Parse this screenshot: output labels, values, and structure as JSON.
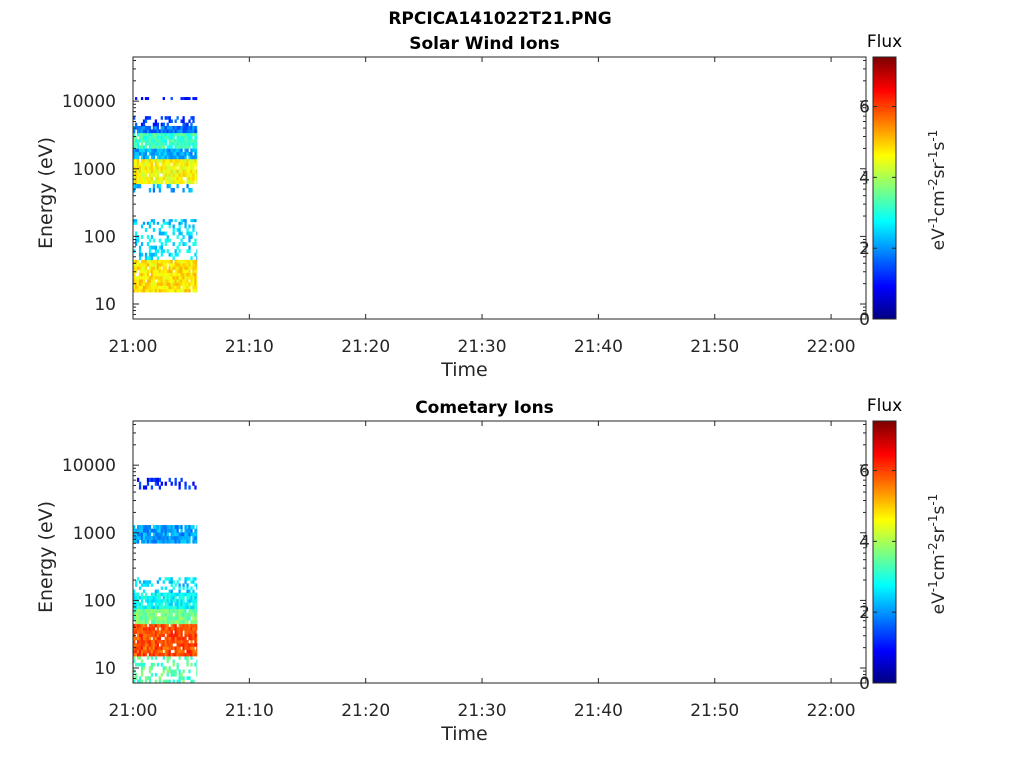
{
  "figure": {
    "title": "RPCICA141022T21.PNG"
  },
  "colormap": [
    "#00007f",
    "#0000ff",
    "#007fff",
    "#00ffff",
    "#7fff7f",
    "#ffff00",
    "#ff7f00",
    "#ff0000",
    "#7f0000"
  ],
  "chart_data": [
    {
      "type": "heatmap",
      "title": "Solar Wind Ions",
      "xlabel": "Time",
      "ylabel": "Energy (eV)",
      "x_ticks": [
        "21:00",
        "21:10",
        "21:20",
        "21:30",
        "21:40",
        "21:50",
        "22:00"
      ],
      "x_range": [
        "21:00",
        "22:03"
      ],
      "y_scale": "log",
      "y_ticks": [
        "10",
        "100",
        "1000",
        "10000"
      ],
      "y_range": [
        6,
        45000
      ],
      "colorbar": {
        "label": "Flux",
        "units_base": "eV",
        "units_parts": [
          [
            "-1",
            "cm"
          ],
          [
            "-2",
            "sr"
          ],
          [
            "-1",
            "s"
          ],
          [
            "-1",
            ""
          ]
        ],
        "ticks": [
          "0",
          "2",
          "4",
          "6"
        ],
        "range": [
          0,
          7.4
        ]
      },
      "data_time_span": [
        "21:00",
        "21:05.5"
      ],
      "bands": [
        {
          "e_min": 15,
          "e_max": 45,
          "flux": 4.8
        },
        {
          "e_min": 45,
          "e_max": 150,
          "flux": 2.6,
          "sparse": true
        },
        {
          "e_min": 150,
          "e_max": 180,
          "flux": 2.4,
          "sparse": true
        },
        {
          "e_min": 450,
          "e_max": 600,
          "flux": 2.2,
          "sparse": true
        },
        {
          "e_min": 600,
          "e_max": 1400,
          "flux": 4.6
        },
        {
          "e_min": 1400,
          "e_max": 2000,
          "flux": 2.2
        },
        {
          "e_min": 2000,
          "e_max": 3400,
          "flux": 3.2
        },
        {
          "e_min": 3400,
          "e_max": 4300,
          "flux": 1.8
        },
        {
          "e_min": 4300,
          "e_max": 6000,
          "flux": 1.4,
          "sparse": true
        },
        {
          "e_min": 10500,
          "e_max": 11500,
          "flux": 1.2,
          "sparse": true
        }
      ]
    },
    {
      "type": "heatmap",
      "title": "Cometary Ions",
      "xlabel": "Time",
      "ylabel": "Energy (eV)",
      "x_ticks": [
        "21:00",
        "21:10",
        "21:20",
        "21:30",
        "21:40",
        "21:50",
        "22:00"
      ],
      "x_range": [
        "21:00",
        "22:03"
      ],
      "y_scale": "log",
      "y_ticks": [
        "10",
        "100",
        "1000",
        "10000"
      ],
      "y_range": [
        6,
        45000
      ],
      "colorbar": {
        "label": "Flux",
        "units_base": "eV",
        "units_parts": [
          [
            "-1",
            "cm"
          ],
          [
            "-2",
            "sr"
          ],
          [
            "-1",
            "s"
          ],
          [
            "-1",
            ""
          ]
        ],
        "ticks": [
          "0",
          "2",
          "4",
          "6"
        ],
        "range": [
          0,
          7.4
        ]
      },
      "data_time_span": [
        "21:00",
        "21:05.5"
      ],
      "bands": [
        {
          "e_min": 6,
          "e_max": 15,
          "flux": 3.4,
          "sparse": true
        },
        {
          "e_min": 15,
          "e_max": 45,
          "flux": 5.9
        },
        {
          "e_min": 45,
          "e_max": 75,
          "flux": 3.6
        },
        {
          "e_min": 75,
          "e_max": 130,
          "flux": 2.8
        },
        {
          "e_min": 130,
          "e_max": 220,
          "flux": 2.5,
          "sparse": true
        },
        {
          "e_min": 700,
          "e_max": 1300,
          "flux": 2.1
        },
        {
          "e_min": 4400,
          "e_max": 6500,
          "flux": 1.2,
          "sparse": true
        }
      ]
    }
  ]
}
